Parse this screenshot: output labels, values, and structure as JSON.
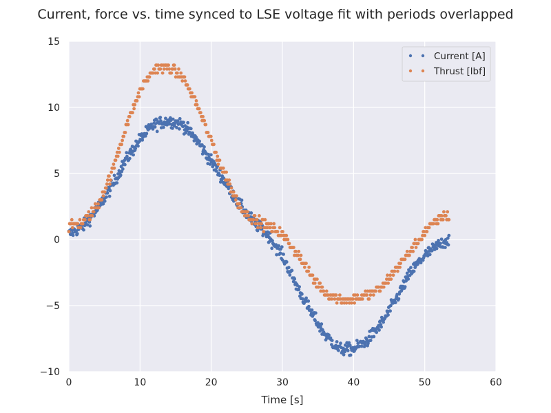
{
  "chart_data": {
    "type": "scatter",
    "title": "Current, force vs. time synced to LSE voltage fit with periods overlapped",
    "xlabel": "Time [s]",
    "ylabel": "",
    "xlim": [
      0,
      60
    ],
    "ylim": [
      -10,
      15
    ],
    "xticks": [
      0,
      10,
      20,
      30,
      40,
      50,
      60
    ],
    "yticks": [
      -10,
      -5,
      0,
      5,
      10,
      15
    ],
    "xtick_labels": [
      "0",
      "10",
      "20",
      "30",
      "40",
      "50",
      "60"
    ],
    "ytick_labels": [
      "−10",
      "−5",
      "0",
      "5",
      "10",
      "15"
    ],
    "grid": true,
    "legend_position": "top-right",
    "time_range": [
      0,
      53.4
    ],
    "series": [
      {
        "name": "Current [A]",
        "color": "#4c72b0",
        "profile": {
          "t": [
            0,
            2,
            4,
            6,
            8,
            10,
            12,
            14,
            16,
            18,
            20,
            22,
            24,
            26,
            28,
            30,
            32,
            34,
            36,
            38,
            40,
            42,
            44,
            46,
            48,
            50,
            52,
            53.4
          ],
          "y": [
            0.4,
            1.0,
            2.3,
            4.0,
            6.0,
            7.6,
            8.7,
            9.0,
            8.7,
            7.5,
            5.9,
            4.3,
            2.6,
            1.3,
            0.3,
            -1.2,
            -3.5,
            -5.5,
            -7.2,
            -8.3,
            -8.3,
            -7.6,
            -6.3,
            -4.5,
            -2.5,
            -1.2,
            -0.4,
            0.0
          ]
        },
        "noise": 0.55,
        "count": 720
      },
      {
        "name": "Thrust [lbf]",
        "color": "#dd8452",
        "profile": {
          "t": [
            0,
            2,
            4,
            6,
            8,
            10,
            12,
            14,
            16,
            18,
            20,
            22,
            24,
            26,
            28,
            30,
            32,
            34,
            36,
            38,
            40,
            42,
            44,
            46,
            48,
            50,
            52,
            53.4
          ],
          "y": [
            1.0,
            1.3,
            2.5,
            5.0,
            8.5,
            11.3,
            12.9,
            13.0,
            12.3,
            10.2,
            7.4,
            4.8,
            2.5,
            1.4,
            1.0,
            0.4,
            -1.0,
            -2.7,
            -4.0,
            -4.5,
            -4.5,
            -4.2,
            -3.6,
            -2.2,
            -0.9,
            0.6,
            1.6,
            1.8
          ]
        },
        "noise": 0.45,
        "quantum": 0.3,
        "count": 520
      }
    ]
  }
}
